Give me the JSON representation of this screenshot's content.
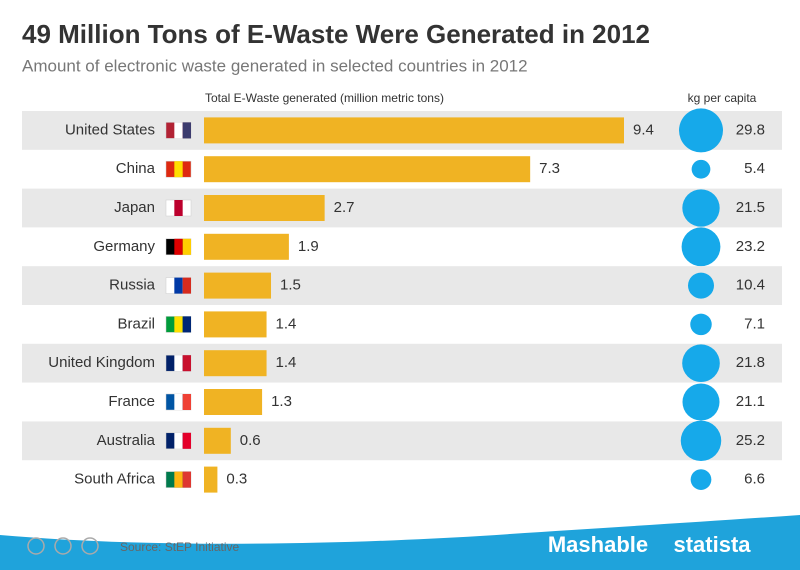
{
  "chart_data": {
    "type": "bar-bubble",
    "title": "49 Million Tons of E-Waste Were Generated in 2012",
    "subtitle": "Amount of electronic waste generated in selected countries in 2012",
    "categories": [
      "United States",
      "China",
      "Japan",
      "Germany",
      "Russia",
      "Brazil",
      "United Kingdom",
      "France",
      "Australia",
      "South Africa"
    ],
    "series": [
      {
        "name": "Total E-Waste generated (million metric tons)",
        "color": "#f0b323",
        "values": [
          9.4,
          7.3,
          2.7,
          1.9,
          1.5,
          1.4,
          1.4,
          1.3,
          0.6,
          0.3
        ]
      },
      {
        "name": "kg per capita",
        "color": "#16a9ea",
        "values": [
          29.8,
          5.4,
          21.5,
          23.2,
          10.4,
          7.1,
          21.8,
          21.1,
          25.2,
          6.6
        ]
      }
    ],
    "source": "Source: StEP Initiative",
    "brands": [
      "Mashable",
      "statista"
    ]
  }
}
